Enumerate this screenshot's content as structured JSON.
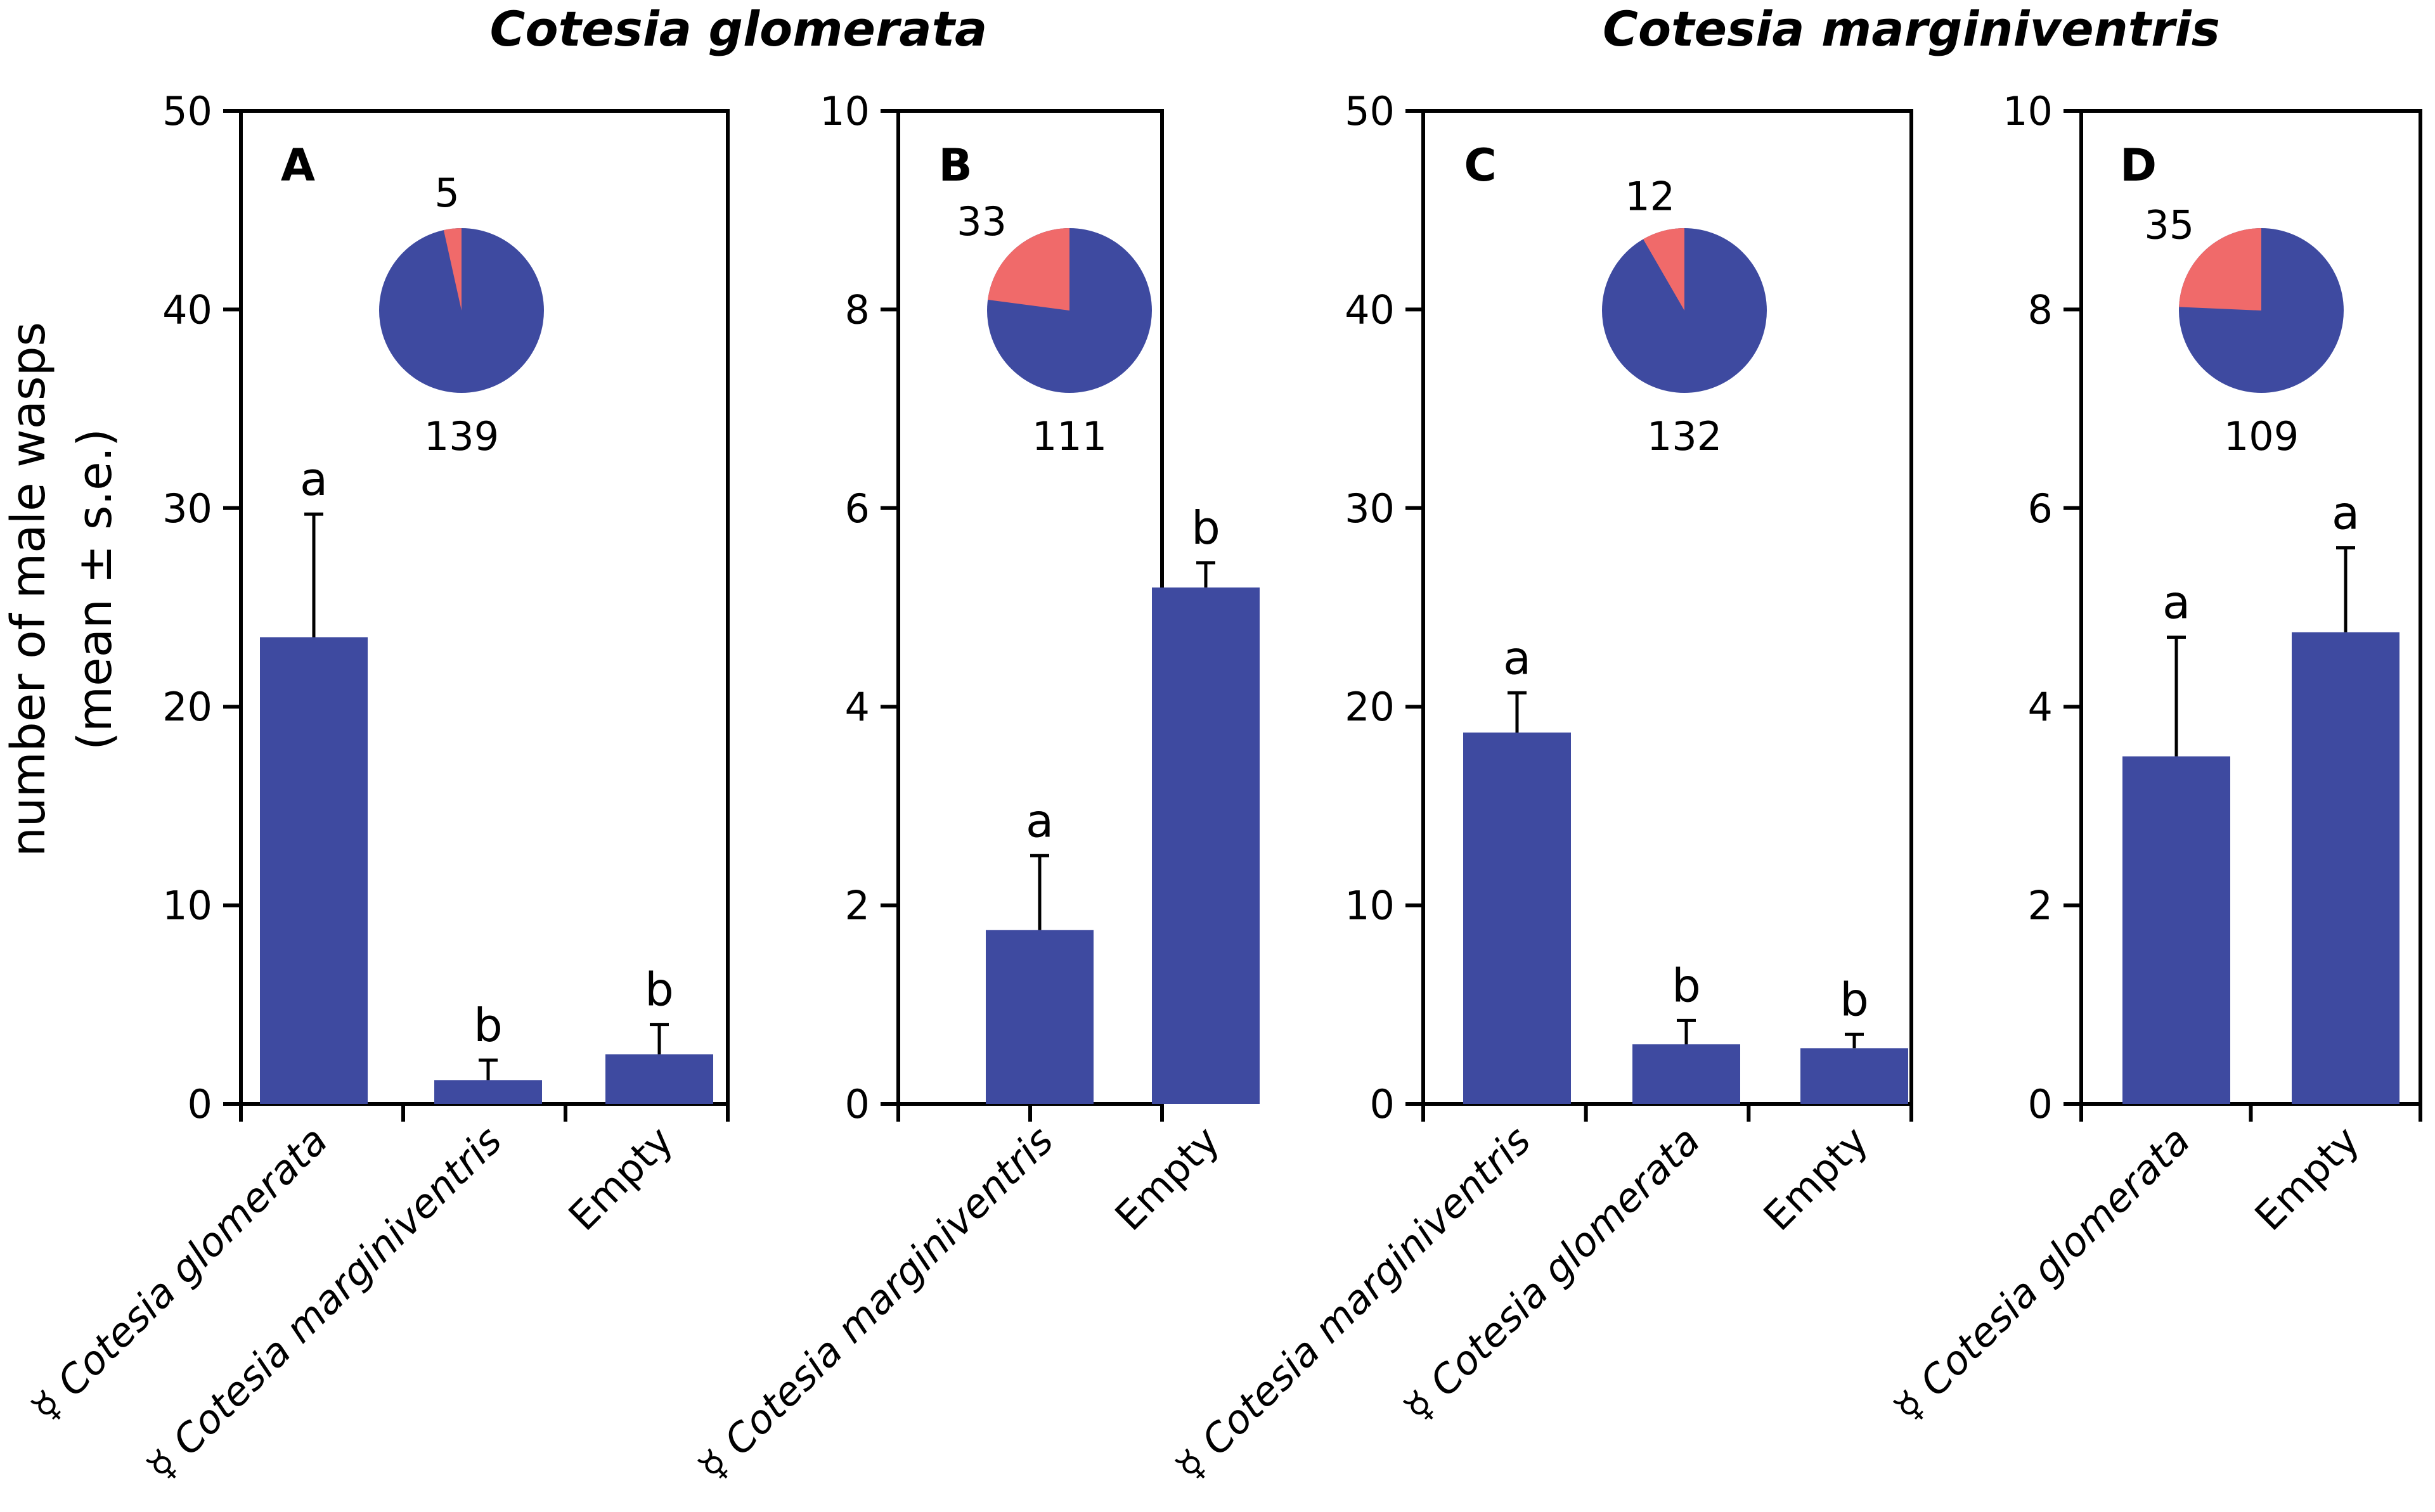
{
  "colors": {
    "bar": "#3e4aa0",
    "pie_major": "#3e4aa0",
    "pie_minor": "#f06a6a"
  },
  "ylabel_line1": "number of male wasps",
  "ylabel_line2": "(mean ± s.e.)",
  "group_titles": [
    "Cotesia glomerata",
    "Cotesia marginiventris"
  ],
  "chart_data": [
    {
      "type": "bar",
      "panel": "A",
      "categories": [
        "☿ Cotesia glomerata",
        "☿ Cotesia marginiventris",
        "Empty"
      ],
      "values": [
        23.5,
        1.2,
        2.5
      ],
      "errors": [
        6.2,
        1.0,
        1.5
      ],
      "significance": [
        "a",
        "b",
        "b"
      ],
      "ylim": [
        0,
        50
      ],
      "yticks": [
        0,
        10,
        20,
        30,
        40,
        50
      ],
      "pie": {
        "minor": 5,
        "major": 139
      }
    },
    {
      "type": "bar",
      "panel": "B",
      "categories": [
        "☿ Cotesia marginiventris",
        "Empty"
      ],
      "values": [
        1.75,
        5.2
      ],
      "errors": [
        0.75,
        0.25
      ],
      "significance": [
        "a",
        "b"
      ],
      "ylim": [
        0,
        10
      ],
      "yticks": [
        0,
        2,
        4,
        6,
        8,
        10
      ],
      "pie": {
        "minor": 33,
        "major": 111
      }
    },
    {
      "type": "bar",
      "panel": "C",
      "categories": [
        "☿ Cotesia marginiventris",
        "☿ Cotesia glomerata",
        "Empty"
      ],
      "values": [
        18.7,
        3.0,
        2.8
      ],
      "errors": [
        2.0,
        1.2,
        0.7
      ],
      "significance": [
        "a",
        "b",
        "b"
      ],
      "ylim": [
        0,
        50
      ],
      "yticks": [
        0,
        10,
        20,
        30,
        40,
        50
      ],
      "pie": {
        "minor": 12,
        "major": 132
      }
    },
    {
      "type": "bar",
      "panel": "D",
      "categories": [
        "☿ Cotesia glomerata",
        "Empty"
      ],
      "values": [
        3.5,
        4.75
      ],
      "errors": [
        1.2,
        0.85
      ],
      "significance": [
        "a",
        "a"
      ],
      "ylim": [
        0,
        10
      ],
      "yticks": [
        0,
        2,
        4,
        6,
        8,
        10
      ],
      "pie": {
        "minor": 35,
        "major": 109
      }
    }
  ]
}
